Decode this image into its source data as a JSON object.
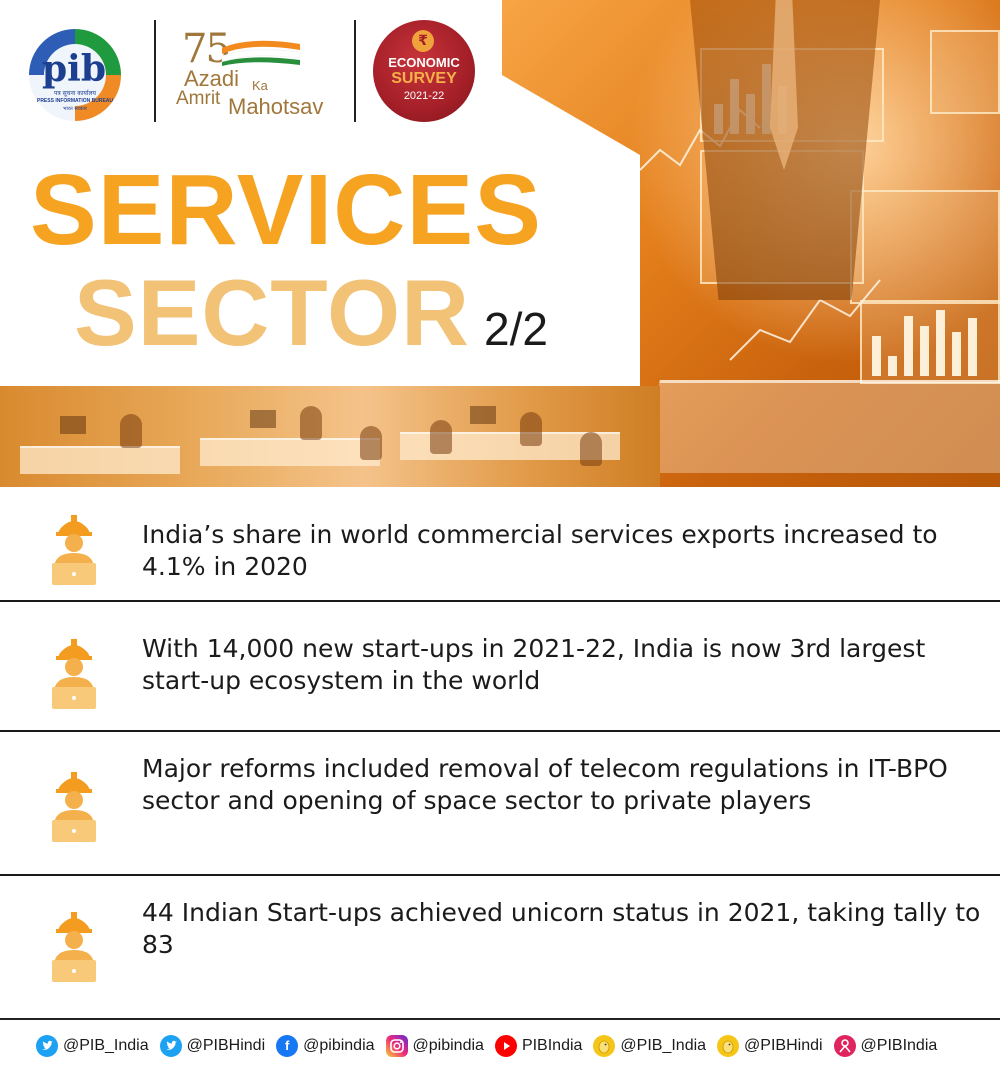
{
  "header": {
    "pib_logo": {
      "text": "pib",
      "hindi": "पत्र सूचना कार्यालय",
      "english": "PRESS INFORMATION BUREAU",
      "footer": "भारत सरकार"
    },
    "azadi_logo": {
      "number": "75",
      "line1": "Azadi",
      "ka": "Ka",
      "line2": "Amrit",
      "line3": "Mahotsav"
    },
    "survey_logo": {
      "symbol": "₹",
      "line1": "ECONOMIC",
      "line2": "SURVEY",
      "line3": "2021-22"
    }
  },
  "title": {
    "line1": "SERVICES",
    "line2": "SECTOR",
    "fraction": "2/2",
    "colors": {
      "line1": "#f7a322",
      "line2": "#f2c277"
    }
  },
  "facts": [
    {
      "text": "India’s share in world commercial services exports increased to 4.1% in 2020",
      "icon": "worker-laptop-icon"
    },
    {
      "text": "With 14,000 new start-ups in 2021-22, India is now 3rd largest start-up ecosystem in the world",
      "icon": "worker-laptop-icon"
    },
    {
      "text": "Major reforms included removal of telecom regulations in IT-BPO sector and opening of space sector to private players",
      "icon": "worker-laptop-icon"
    },
    {
      "text": "44 Indian Start-ups achieved unicorn status in 2021, taking tally to 83",
      "icon": "worker-laptop-icon"
    }
  ],
  "social": [
    {
      "icon": "twitter-icon",
      "handle": "@PIB_India",
      "color": "#1da1f2"
    },
    {
      "icon": "twitter-icon",
      "handle": "@PIBHindi",
      "color": "#1da1f2"
    },
    {
      "icon": "facebook-icon",
      "handle": "@pibindia",
      "color": "#1877f2"
    },
    {
      "icon": "instagram-icon",
      "handle": "@pibindia",
      "color": "#d62976"
    },
    {
      "icon": "youtube-icon",
      "handle": "PIBIndia",
      "color": "#ff0000"
    },
    {
      "icon": "koo-icon",
      "handle": "@PIB_India",
      "color": "#f5c518"
    },
    {
      "icon": "koo-icon",
      "handle": "@PIBHindi",
      "color": "#f5c518"
    },
    {
      "icon": "sharechat-icon",
      "handle": "@PIBIndia",
      "color": "#e0245e"
    }
  ]
}
